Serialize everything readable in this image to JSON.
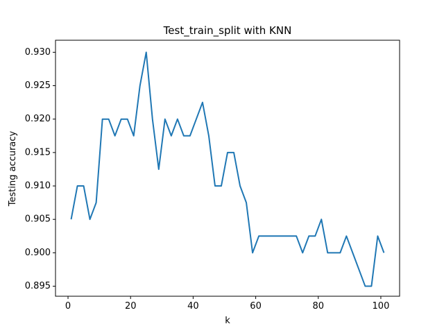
{
  "chart_data": {
    "type": "line",
    "title": "Test_train_split with KNN",
    "xlabel": "k",
    "ylabel": "Testing accuracy",
    "xlim": [
      -4,
      106
    ],
    "ylim": [
      0.8935,
      0.9318
    ],
    "xticks": [
      0,
      20,
      40,
      60,
      80,
      100
    ],
    "yticks": [
      0.895,
      0.9,
      0.905,
      0.91,
      0.915,
      0.92,
      0.925,
      0.93
    ],
    "xtick_labels": [
      "0",
      "20",
      "40",
      "60",
      "80",
      "100"
    ],
    "ytick_labels": [
      "0.895",
      "0.900",
      "0.905",
      "0.910",
      "0.915",
      "0.920",
      "0.925",
      "0.930"
    ],
    "grid": false,
    "colors": {
      "line": "#1f77b4",
      "axes": "#000000",
      "background": "#ffffff"
    },
    "series": [
      {
        "x": [
          1,
          3,
          5,
          7,
          9,
          11,
          13,
          15,
          17,
          19,
          21,
          23,
          25,
          27,
          29,
          31,
          33,
          35,
          37,
          39,
          41,
          43,
          45,
          47,
          49,
          51,
          53,
          55,
          57,
          59,
          61,
          63,
          65,
          67,
          69,
          71,
          73,
          75,
          77,
          79,
          81,
          83,
          85,
          87,
          89,
          91,
          93,
          95,
          97,
          99,
          101
        ],
        "values": [
          0.905,
          0.91,
          0.91,
          0.905,
          0.9075,
          0.92,
          0.92,
          0.9175,
          0.92,
          0.92,
          0.9175,
          0.925,
          0.93,
          0.92,
          0.9125,
          0.92,
          0.9175,
          0.92,
          0.9175,
          0.9175,
          0.92,
          0.9225,
          0.9175,
          0.91,
          0.91,
          0.915,
          0.915,
          0.91,
          0.9075,
          0.9,
          0.9025,
          0.9025,
          0.9025,
          0.9025,
          0.9025,
          0.9025,
          0.9025,
          0.9,
          0.9025,
          0.9025,
          0.905,
          0.9,
          0.9,
          0.9,
          0.9025,
          0.9,
          0.8975,
          0.895,
          0.895,
          0.9025,
          0.9
        ]
      }
    ]
  }
}
